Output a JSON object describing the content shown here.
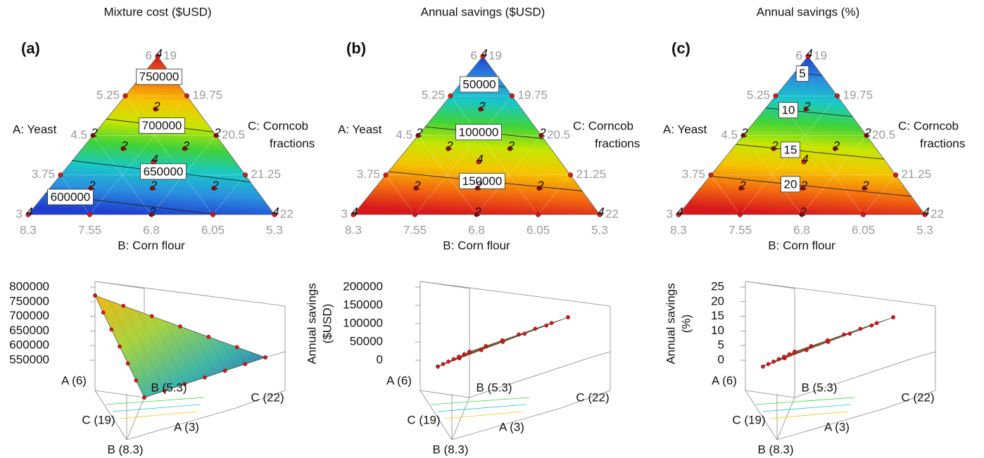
{
  "panels": [
    {
      "title": "Mixture cost ($USD)",
      "letter": "(a)",
      "axis_a": "A: Yeast",
      "axis_b": "B: Corn flour",
      "axis_c": [
        "C: Corncob",
        "fractions"
      ],
      "a_ticks": [
        3,
        3.75,
        4.5,
        5.25,
        6
      ],
      "b_ticks": [
        8.3,
        7.55,
        6.8,
        6.05,
        5.3
      ],
      "c_ticks": [
        19,
        19.75,
        20.5,
        21.25,
        22
      ],
      "contours": [
        750000,
        700000,
        650000,
        600000
      ],
      "replicates": [
        4,
        4,
        4,
        4,
        2,
        2,
        2,
        2,
        2,
        2,
        2,
        2,
        2
      ],
      "surface": {
        "z_title": [
          "Mixture cost",
          "($USD)"
        ],
        "z_ticks": [
          550000,
          600000,
          650000,
          700000,
          750000,
          800000
        ],
        "corner_labels": [
          "A (6)",
          "B (5.3)",
          "C (22)",
          "C (19)",
          "A (3)",
          "B (8.3)"
        ]
      }
    },
    {
      "title": "Annual savings ($USD)",
      "letter": "(b)",
      "axis_a": "A: Yeast",
      "axis_b": "B: Corn flour",
      "axis_c": [
        "C: Corncob",
        "fractions"
      ],
      "a_ticks": [
        3,
        3.75,
        4.5,
        5.25,
        6
      ],
      "b_ticks": [
        8.3,
        7.55,
        6.8,
        6.05,
        5.3
      ],
      "c_ticks": [
        19,
        19.75,
        20.5,
        21.25,
        22
      ],
      "contours": [
        50000,
        100000,
        150000
      ],
      "replicates": [
        4,
        4,
        4,
        4,
        2,
        2,
        2,
        2,
        2,
        2,
        2,
        2,
        2
      ],
      "surface": {
        "z_title": [
          "Annual savings",
          "($USD)"
        ],
        "z_ticks": [
          0,
          50000,
          100000,
          150000,
          200000
        ],
        "corner_labels": [
          "A (6)",
          "B (5.3)",
          "C (22)",
          "C (19)",
          "A (3)",
          "B (8.3)"
        ]
      }
    },
    {
      "title": "Annual savings (%)",
      "letter": "(c)",
      "axis_a": "A: Yeast",
      "axis_b": "B: Corn flour",
      "axis_c": [
        "C: Corncob",
        "fractions"
      ],
      "a_ticks": [
        3,
        3.75,
        4.5,
        5.25,
        6
      ],
      "b_ticks": [
        8.3,
        7.55,
        6.8,
        6.05,
        5.3
      ],
      "c_ticks": [
        19,
        19.75,
        20.5,
        21.25,
        22
      ],
      "contours": [
        5,
        10,
        15,
        20
      ],
      "replicates": [
        4,
        4,
        4,
        4,
        2,
        2,
        2,
        2,
        2,
        2,
        2,
        2,
        2
      ],
      "surface": {
        "z_title": [
          "Annual savings",
          "(%)"
        ],
        "z_ticks": [
          0,
          5,
          10,
          15,
          20,
          25
        ],
        "corner_labels": [
          "A (6)",
          "B (5.3)",
          "C (22)",
          "C (19)",
          "A (3)",
          "B (8.3)"
        ]
      }
    }
  ]
}
